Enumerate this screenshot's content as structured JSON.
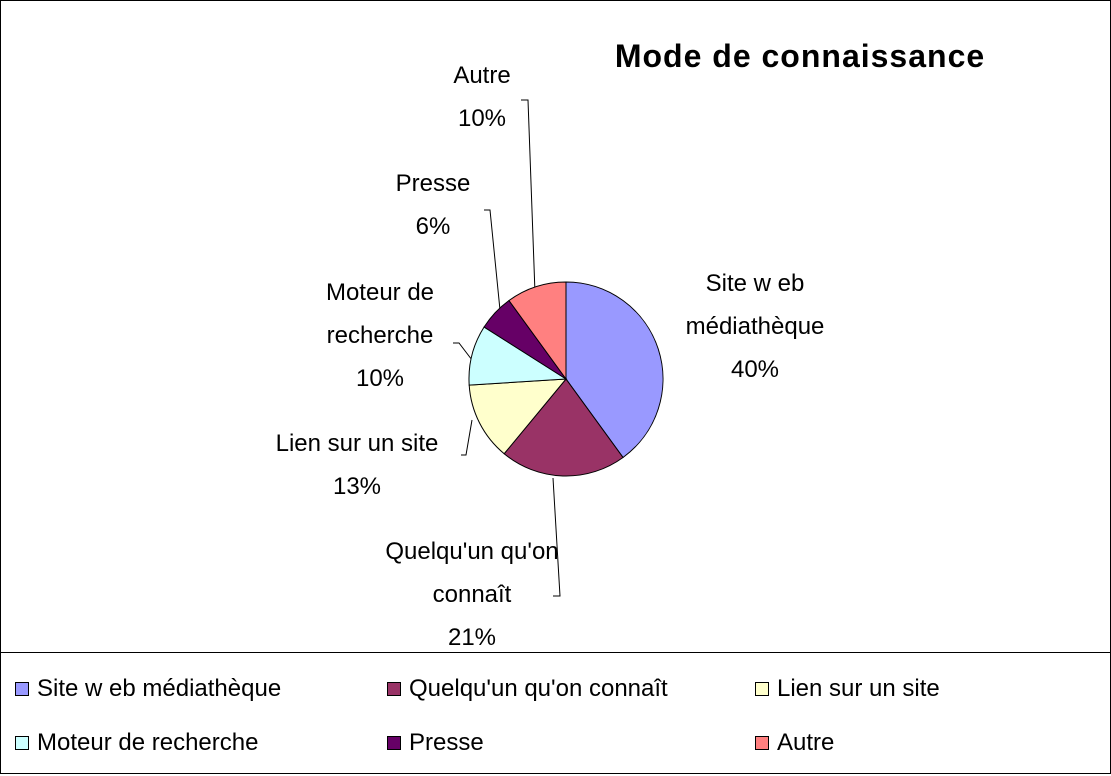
{
  "chart_data": {
    "type": "pie",
    "title": "Mode de connaissance",
    "categories": [
      "Site w eb médiathèque",
      "Quelqu'un qu'on connaît",
      "Lien sur un site",
      "Moteur de recherche",
      "Presse",
      "Autre"
    ],
    "values": [
      40,
      21,
      13,
      10,
      6,
      10
    ],
    "value_labels": [
      "40%",
      "21%",
      "13%",
      "10%",
      "6%",
      "10%"
    ],
    "colors": [
      "#9999ff",
      "#993366",
      "#ffffcc",
      "#ccffff",
      "#660066",
      "#ff8080"
    ],
    "legend": "bottom"
  }
}
